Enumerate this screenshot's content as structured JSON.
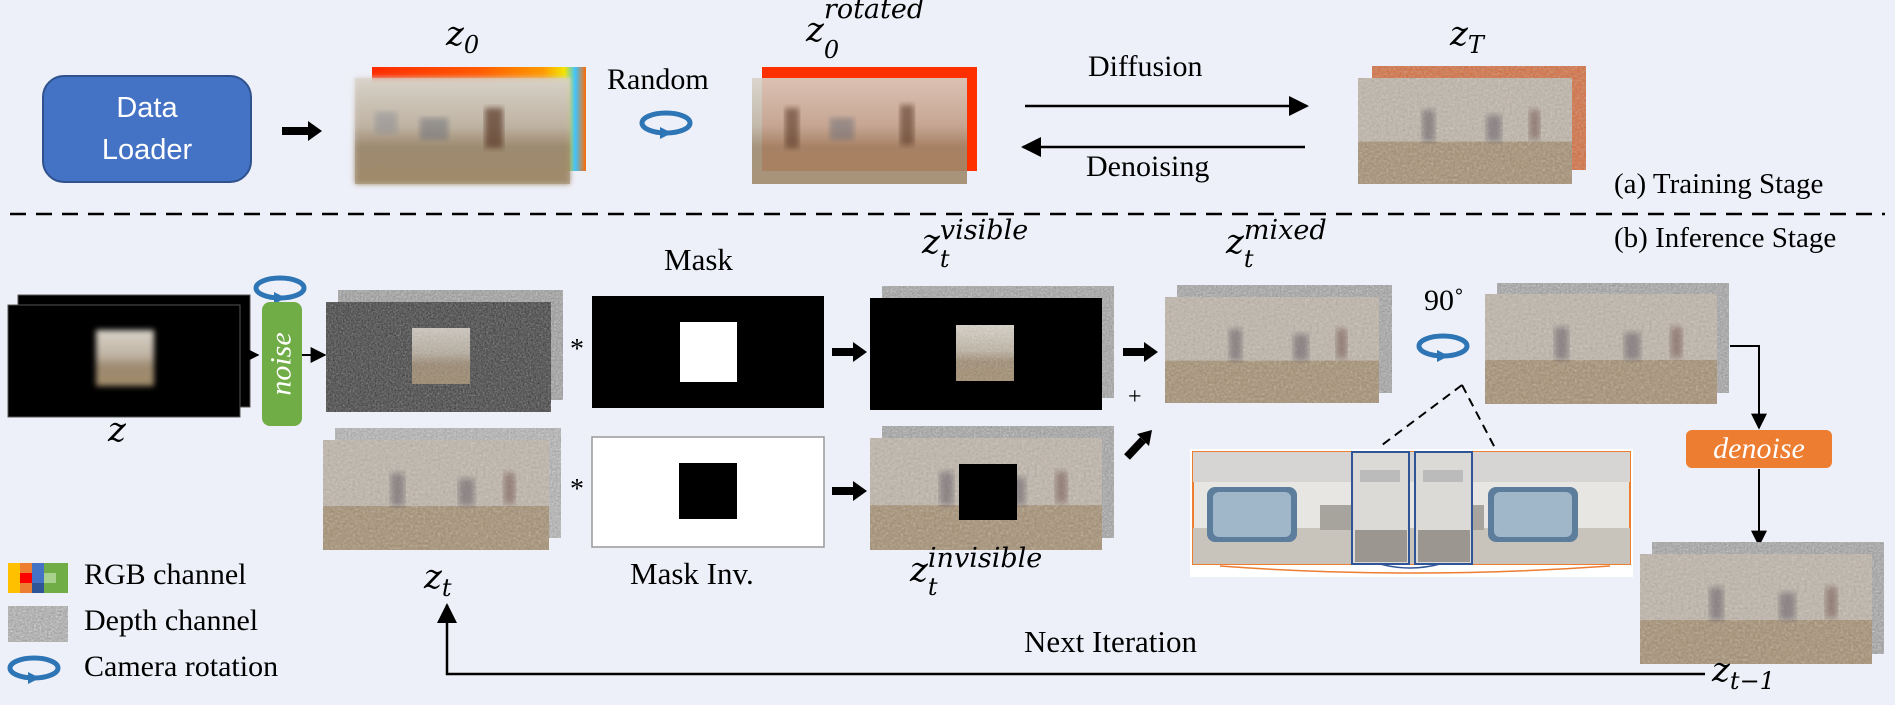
{
  "training": {
    "data_loader_line1": "Data",
    "data_loader_line2": "Loader",
    "z0_base": "z",
    "z0_sub": "0",
    "random_label": "Random",
    "z0rot_base": "z",
    "z0rot_sub": "0",
    "z0rot_sup": "rotated",
    "diffusion_label": "Diffusion",
    "denoising_label": "Denoising",
    "zT_base": "z",
    "zT_sub": "T",
    "stage_label": "(a) Training Stage"
  },
  "inference": {
    "stage_label": "(b) Inference Stage",
    "z_label": "z",
    "noise_label": "noise",
    "zt_base": "z",
    "zt_sub": "t",
    "mask_label": "Mask",
    "mask_inv_label": "Mask Inv.",
    "multiply_symbol": "*",
    "plus_symbol": "+",
    "visible_base": "z",
    "visible_sub": "t",
    "visible_sup": "visible",
    "invisible_base": "z",
    "invisible_sub": "t",
    "invisible_sup": "invisible",
    "mixed_base": "z",
    "mixed_sub": "t",
    "mixed_sup": "mixed",
    "rotation_label": "90˚",
    "denoise_label": "denoise",
    "zt1_base": "z",
    "zt1_sub": "t−1",
    "next_iteration_label": "Next Iteration"
  },
  "legend": {
    "rgb_label": "RGB channel",
    "depth_label": "Depth channel",
    "camera_label": "Camera rotation"
  },
  "colors": {
    "data_loader_fill": "#4472c4",
    "noise_fill": "#70ad47",
    "denoise_fill": "#ed7d31",
    "rotation_icon": "#2e75b6",
    "background": "#eef0f9"
  }
}
